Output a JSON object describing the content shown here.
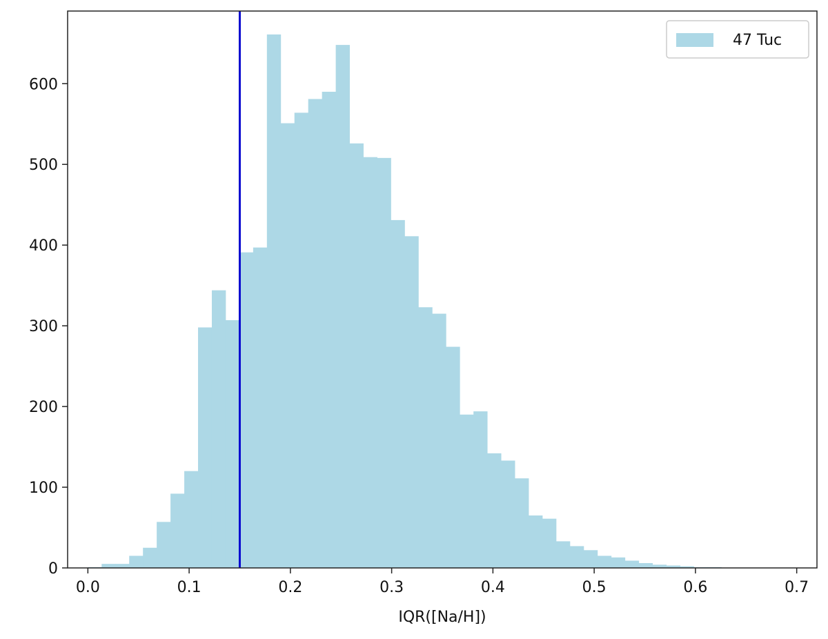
{
  "chart_data": {
    "type": "bar",
    "title": "",
    "xlabel": "IQR([Na/H])",
    "ylabel": "",
    "xlim": [
      -0.02,
      0.72
    ],
    "ylim": [
      0,
      690
    ],
    "xticks": [
      0.0,
      0.1,
      0.2,
      0.3,
      0.4,
      0.5,
      0.6,
      0.7
    ],
    "xtick_labels": [
      "0.0",
      "0.1",
      "0.2",
      "0.3",
      "0.4",
      "0.5",
      "0.6",
      "0.7"
    ],
    "yticks": [
      0,
      100,
      200,
      300,
      400,
      500,
      600
    ],
    "ytick_labels": [
      "0",
      "100",
      "200",
      "300",
      "400",
      "500",
      "600"
    ],
    "grid": false,
    "legend_position": "top-right",
    "vertical_line": {
      "x": 0.15,
      "color": "#0a0ad0"
    },
    "series": [
      {
        "name": "47 Tuc",
        "color": "#add8e6",
        "bin_start": 0.0,
        "bin_width": 0.0136,
        "values": [
          1,
          5,
          5,
          15,
          25,
          57,
          92,
          120,
          298,
          344,
          307,
          391,
          397,
          661,
          551,
          564,
          581,
          590,
          648,
          526,
          509,
          508,
          431,
          411,
          323,
          315,
          274,
          190,
          194,
          142,
          133,
          111,
          65,
          61,
          33,
          27,
          22,
          15,
          13,
          9,
          6,
          4,
          3,
          2,
          1,
          1,
          0,
          0,
          0,
          0,
          0
        ]
      }
    ]
  }
}
